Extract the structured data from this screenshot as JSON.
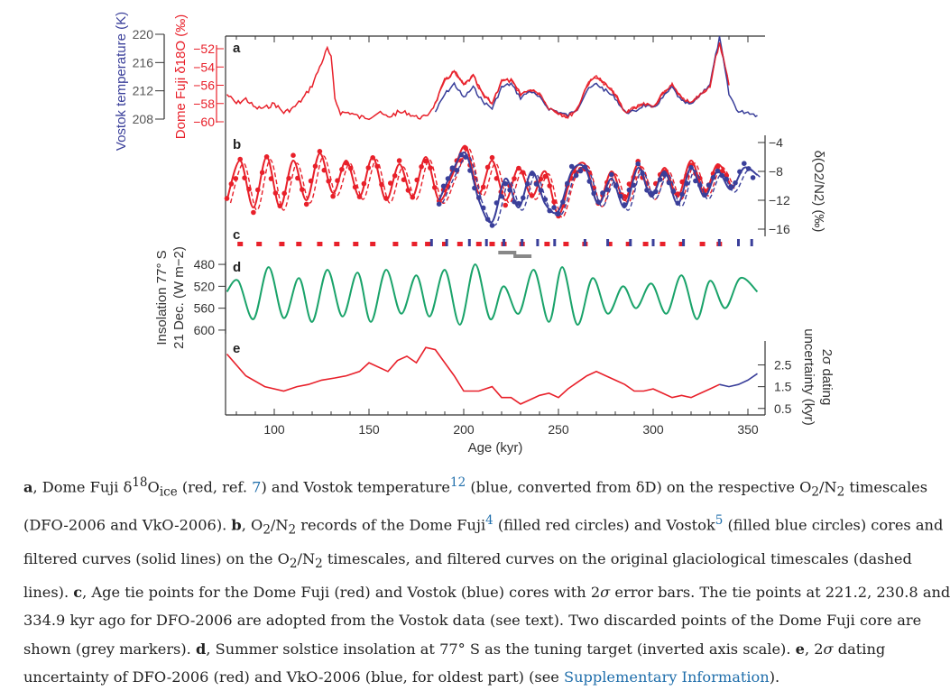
{
  "colors": {
    "red": "#e8202a",
    "blue": "#3a3f9a",
    "green": "#1aa36a",
    "grey": "#888888",
    "link": "#1f6eab",
    "axis": "#333333"
  },
  "axis_labels": {
    "vostok_temp": "Vostok temperature (K)",
    "dome_fuji": "Dome Fuji δ18O (‰)",
    "o2n2": "δ(O2/N2) (‰)",
    "insolation_1": "Insolation 77° S",
    "insolation_2": "21 Dec. (W m−2)",
    "dating_1": "2σ dating",
    "dating_2": "uncertainty (kyr)",
    "x": "Age (kyr)"
  },
  "panel_letters": [
    "a",
    "b",
    "c",
    "d",
    "e"
  ],
  "chart_data": [
    {
      "panel": "a",
      "type": "line",
      "xlabel": "Age (kyr)",
      "xlim": [
        75,
        355
      ],
      "series": [
        {
          "name": "Dome Fuji δ18O (‰)",
          "color": "#e8202a",
          "ylim": [
            -60,
            -52
          ],
          "x": [
            75,
            80,
            85,
            90,
            95,
            100,
            105,
            110,
            115,
            120,
            125,
            128,
            130,
            132,
            135,
            140,
            145,
            150,
            155,
            160,
            165,
            170,
            175,
            180,
            185,
            190,
            195,
            200,
            205,
            210,
            215,
            220,
            225,
            230,
            235,
            240,
            245,
            250,
            255,
            260,
            265,
            270,
            275,
            280,
            285,
            290,
            295,
            300,
            305,
            310,
            315,
            320,
            325,
            330,
            333,
            335,
            337,
            340
          ],
          "y": [
            -57,
            -58,
            -57.5,
            -58.5,
            -58.5,
            -58,
            -59,
            -58.5,
            -57.5,
            -56,
            -53.5,
            -52,
            -53,
            -57.5,
            -59,
            -59,
            -59.5,
            -59.5,
            -59,
            -59.5,
            -59,
            -59,
            -59.5,
            -59.5,
            -58,
            -55.5,
            -54.5,
            -56,
            -55,
            -57,
            -58,
            -55.5,
            -55.5,
            -57,
            -56.5,
            -57,
            -58.5,
            -59,
            -59.5,
            -58.5,
            -56,
            -55,
            -56,
            -57,
            -59,
            -58.5,
            -58,
            -58.5,
            -57,
            -56,
            -57.5,
            -58,
            -57,
            -56,
            -53,
            -51.5,
            -53,
            -56
          ]
        },
        {
          "name": "Vostok temperature (K)",
          "color": "#3a3f9a",
          "ylim": [
            208,
            220
          ],
          "x": [
            185,
            190,
            195,
            200,
            205,
            210,
            215,
            220,
            225,
            230,
            235,
            240,
            245,
            250,
            255,
            260,
            265,
            270,
            275,
            280,
            285,
            290,
            295,
            300,
            305,
            310,
            315,
            320,
            325,
            330,
            333,
            335,
            337,
            340,
            345,
            350,
            355
          ],
          "y": [
            209,
            211.5,
            213,
            211,
            212.5,
            210.5,
            209.5,
            212.5,
            213,
            211,
            212,
            211,
            209.5,
            209,
            208.5,
            209.5,
            212,
            213,
            212,
            211,
            209,
            209,
            210,
            209.5,
            211,
            212.5,
            210.5,
            210,
            211.5,
            213,
            217,
            219.5,
            216.5,
            211.5,
            209,
            209,
            208.5
          ]
        }
      ]
    },
    {
      "panel": "b",
      "type": "line",
      "xlim": [
        75,
        355
      ],
      "ylim": [
        -17,
        -3
      ],
      "yticks": [
        -4,
        -8,
        -12,
        -16
      ],
      "series": [
        {
          "name": "Dome Fuji",
          "color": "#e8202a",
          "x": [
            75,
            82,
            89,
            96,
            103,
            110,
            117,
            124,
            131,
            138,
            145,
            152,
            159,
            166,
            173,
            180,
            187,
            194,
            201,
            208,
            215,
            222,
            229,
            236,
            243,
            250,
            257,
            264,
            271,
            278,
            285,
            292,
            299,
            306,
            313,
            320,
            327,
            334,
            341
          ],
          "y": [
            -12,
            -6.5,
            -13,
            -6,
            -13,
            -6.5,
            -12,
            -5.5,
            -11,
            -6.5,
            -11.5,
            -6,
            -12,
            -7,
            -11.5,
            -6,
            -12,
            -8.5,
            -4.5,
            -11,
            -6.5,
            -12,
            -7.5,
            -11.5,
            -8,
            -14,
            -8.5,
            -7,
            -12.5,
            -8,
            -12,
            -7,
            -11.5,
            -7.5,
            -11.5,
            -6.5,
            -11,
            -7,
            -10
          ]
        },
        {
          "name": "Vostok",
          "color": "#3a3f9a",
          "x": [
            187,
            194,
            201,
            208,
            215,
            222,
            229,
            236,
            243,
            250,
            257,
            264,
            271,
            278,
            285,
            292,
            299,
            306,
            313,
            320,
            327,
            334,
            341,
            348,
            355
          ],
          "y": [
            -12,
            -8,
            -5.5,
            -12,
            -15,
            -9,
            -13,
            -8,
            -12.5,
            -13.5,
            -8,
            -7.5,
            -12.5,
            -9,
            -13,
            -7.5,
            -11.5,
            -8,
            -12.5,
            -7.5,
            -11.5,
            -8,
            -10.5,
            -7.5,
            -8.5
          ]
        }
      ]
    },
    {
      "panel": "c",
      "type": "scatter",
      "xlim": [
        75,
        355
      ],
      "series": [
        {
          "name": "Dome Fuji tie points",
          "color": "#e8202a",
          "x": [
            82,
            92,
            104,
            113,
            124,
            133,
            143,
            152,
            164,
            174,
            181,
            190,
            198,
            208,
            215,
            221.2,
            230.8,
            244,
            254,
            264,
            277,
            287,
            296,
            305,
            315,
            326,
            334.9
          ]
        },
        {
          "name": "Vostok tie points",
          "color": "#3a3f9a",
          "x": [
            183,
            191,
            203,
            212,
            221.2,
            230.8,
            239,
            248,
            264,
            276,
            288,
            300,
            316,
            334.9,
            345,
            352
          ]
        },
        {
          "name": "Discarded Dome Fuji points",
          "color": "#888888",
          "x": [
            223,
            231
          ]
        }
      ]
    },
    {
      "panel": "d",
      "type": "line",
      "xlim": [
        75,
        355
      ],
      "ylim": [
        470,
        610
      ],
      "yticks": [
        480,
        520,
        560,
        600
      ],
      "inverted": true,
      "series": [
        {
          "name": "Insolation 77° S",
          "color": "#1aa36a",
          "x": [
            75,
            81,
            89,
            97,
            105,
            113,
            120,
            128,
            136,
            144,
            151,
            159,
            167,
            175,
            182,
            190,
            198,
            206,
            214,
            221,
            229,
            237,
            245,
            252,
            260,
            268,
            276,
            284,
            291,
            299,
            307,
            315,
            323,
            330,
            338,
            346,
            355
          ],
          "y": [
            530,
            510,
            580,
            485,
            578,
            505,
            585,
            490,
            575,
            495,
            585,
            490,
            570,
            500,
            575,
            490,
            590,
            480,
            580,
            520,
            570,
            490,
            585,
            485,
            590,
            505,
            570,
            520,
            560,
            515,
            570,
            500,
            580,
            510,
            560,
            505,
            530
          ]
        }
      ]
    },
    {
      "panel": "e",
      "type": "line",
      "xlim": [
        75,
        355
      ],
      "ylim": [
        0.2,
        3.6
      ],
      "yticks": [
        0.5,
        1.5,
        2.5
      ],
      "series": [
        {
          "name": "DFO-2006",
          "color": "#e8202a",
          "x": [
            75,
            85,
            95,
            105,
            112,
            118,
            125,
            132,
            138,
            145,
            150,
            160,
            165,
            170,
            175,
            180,
            185,
            190,
            195,
            200,
            208,
            215,
            220,
            225,
            230,
            235,
            240,
            245,
            250,
            255,
            260,
            265,
            270,
            275,
            280,
            285,
            290,
            295,
            300,
            305,
            310,
            315,
            320,
            325,
            330,
            335
          ],
          "y": [
            3.0,
            2.0,
            1.5,
            1.3,
            1.5,
            1.6,
            1.8,
            1.9,
            2.0,
            2.2,
            2.6,
            2.2,
            2.7,
            2.9,
            2.6,
            3.3,
            3.2,
            2.6,
            2.0,
            1.3,
            1.3,
            1.5,
            1.0,
            1.0,
            0.7,
            0.9,
            1.1,
            1.2,
            1.0,
            1.4,
            1.7,
            2.0,
            2.2,
            2.0,
            1.8,
            1.6,
            1.3,
            1.3,
            1.4,
            1.2,
            1.0,
            1.1,
            1.0,
            1.2,
            1.4,
            1.6
          ]
        },
        {
          "name": "VkO-2006",
          "color": "#3a3f9a",
          "x": [
            335,
            340,
            345,
            350,
            355
          ],
          "y": [
            1.6,
            1.5,
            1.6,
            1.8,
            2.1
          ]
        }
      ]
    }
  ],
  "x_ticks": [
    100,
    150,
    200,
    250,
    300,
    350
  ],
  "caption_html": [
    "<b>a</b>, Dome Fuji δ<sup>18</sup>O<sub>ice</sub> (red, ref. <span class='link'>7</span>) and Vostok temperature<sup class='link'>12</sup> (blue, converted from δD) on the respective O<sub>2</sub>/N<sub>2</sub> timescales",
    "(DFO-2006 and VkO-2006). <b>b</b>, O<sub>2</sub>/N<sub>2</sub> records of the Dome Fuji<sup class='link'>4</sup> (filled red circles) and Vostok<sup class='link'>5</sup> (filled blue circles) cores and",
    "filtered curves (solid lines) on the O<sub>2</sub>/N<sub>2</sub> timescales, and filtered curves on the original glaciological timescales (dashed",
    "lines). <b>c</b>, Age tie points for the Dome Fuji (red) and Vostok (blue) cores with 2<i>σ</i> error bars. The tie points at 221.2, 230.8 and",
    "334.9 kyr ago for DFO-2006 are adopted from the Vostok data (see text). Two discarded points of the Dome Fuji core are",
    "shown (grey markers). <b>d</b>, Summer solstice insolation at 77° S as the tuning target (inverted axis scale). <b>e</b>, 2<i>σ</i> dating",
    "uncertainty of DFO-2006 (red) and VkO-2006 (blue, for oldest part) (see <span class='link'>Supplementary Information</span>)."
  ]
}
